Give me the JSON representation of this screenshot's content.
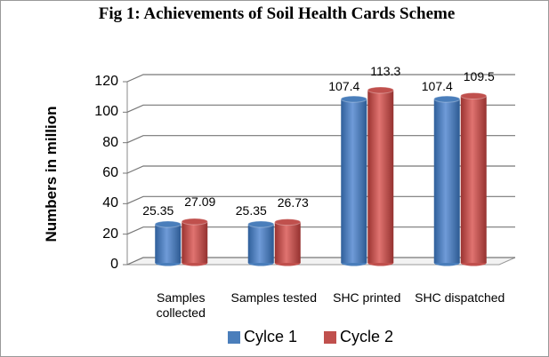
{
  "chart_data": {
    "type": "bar3d",
    "title": "Fig 1: Achievements of Soil Health Cards Scheme",
    "y_label": "Numbers in million",
    "categories": [
      "Samples collected",
      "Samples tested",
      "SHC printed",
      "SHC dispatched"
    ],
    "series": [
      {
        "name": "Cylce 1",
        "color": "#4a7ebb",
        "values": [
          25.35,
          25.35,
          107.4,
          107.4
        ]
      },
      {
        "name": "Cycle 2",
        "color": "#c0504d",
        "values": [
          27.09,
          26.73,
          113.3,
          109.5
        ]
      }
    ],
    "ylim": [
      0,
      120
    ],
    "yticks": [
      0,
      20,
      40,
      60,
      80,
      100,
      120
    ],
    "grid": true,
    "legend": "bottom"
  }
}
